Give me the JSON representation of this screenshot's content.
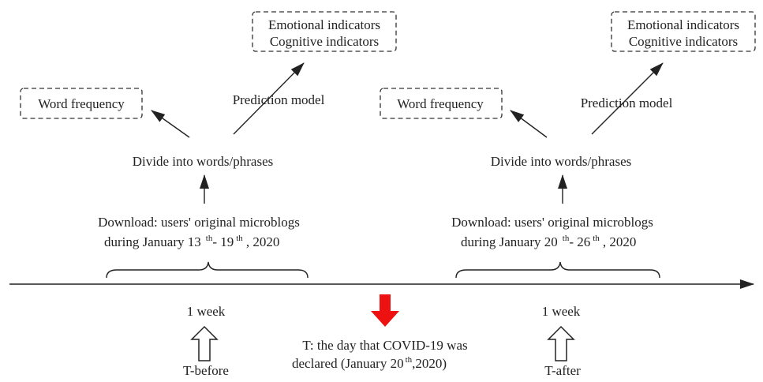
{
  "colors": {
    "declared_arrow": "#ee1111",
    "line": "#222222"
  },
  "before": {
    "word_frequency": "Word frequency",
    "emotional": "Emotional indicators",
    "cognitive": "Cognitive indicators",
    "prediction": "Prediction model",
    "divide": "Divide into words/phrases",
    "download_line1": "Download: users' original microblogs",
    "download_pre": "during January 13",
    "sup1": "th",
    "download_mid": "- 19",
    "sup2": "th",
    "download_post": ", 2020",
    "duration": "1 week",
    "label": "T-before"
  },
  "after": {
    "word_frequency": "Word frequency",
    "emotional": "Emotional indicators",
    "cognitive": "Cognitive indicators",
    "prediction": "Prediction model",
    "divide": "Divide into words/phrases",
    "download_line1": "Download: users' original microblogs",
    "download_pre": "during January 20",
    "sup1": "th",
    "download_mid": "- 26",
    "sup2": "th",
    "download_post": ", 2020",
    "duration": "1 week",
    "label": "T-after"
  },
  "event": {
    "line1": "T: the day that COVID-19 was",
    "line2_pre": "declared (January 20",
    "sup": "th",
    "line2_post": ",2020)"
  }
}
